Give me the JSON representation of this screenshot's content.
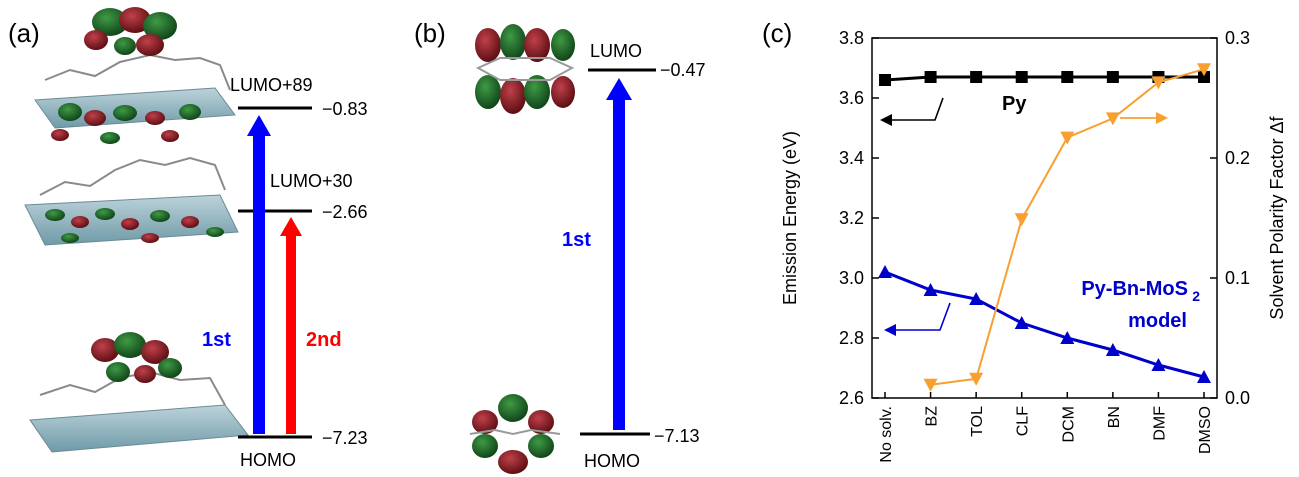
{
  "panel_a": {
    "tag": "(a)",
    "levels": [
      {
        "name": "LUMO+89",
        "energy": "−0.83"
      },
      {
        "name": "LUMO+30",
        "energy": "−2.66"
      },
      {
        "name": "HOMO",
        "energy": "−7.23"
      }
    ],
    "transitions": [
      {
        "label": "1st",
        "color": "#0000ff"
      },
      {
        "label": "2nd",
        "color": "#ff0000"
      }
    ]
  },
  "panel_b": {
    "tag": "(b)",
    "levels": [
      {
        "name": "LUMO",
        "energy": "−0.47"
      },
      {
        "name": "HOMO",
        "energy": "−7.13"
      }
    ],
    "transitions": [
      {
        "label": "1st",
        "color": "#0000ff"
      }
    ]
  },
  "panel_c": {
    "tag": "(c)",
    "py_label": "Py",
    "model_label_line1": "Py-Bn-MoS",
    "model_label_sub": "2",
    "model_label_line2": "model"
  },
  "chart_data": {
    "type": "line",
    "categories": [
      "No solv.",
      "BZ",
      "TOL",
      "CLF",
      "DCM",
      "BN",
      "DMF",
      "DMSO"
    ],
    "ylabel": "Emission Energy (eV)",
    "y2label": "Solvent Polarity Factor Δf",
    "ylim": [
      2.6,
      3.8
    ],
    "y2lim": [
      0.0,
      0.3
    ],
    "yticks": [
      "2.6",
      "2.8",
      "3.0",
      "3.2",
      "3.4",
      "3.6",
      "3.8"
    ],
    "y2ticks": [
      "0.0",
      "0.1",
      "0.2",
      "0.3"
    ],
    "series": [
      {
        "name": "Py",
        "axis": "left",
        "color": "#000000",
        "marker": "square",
        "values": [
          3.66,
          3.67,
          3.67,
          3.67,
          3.67,
          3.67,
          3.67,
          3.67
        ]
      },
      {
        "name": "Py-Bn-MoS2 model",
        "axis": "left",
        "color": "#0000cc",
        "marker": "triangle-up",
        "values": [
          3.02,
          2.96,
          2.93,
          2.85,
          2.8,
          2.76,
          2.71,
          2.67
        ]
      },
      {
        "axis": "right",
        "color": "#f7a030",
        "marker": "triangle-down",
        "values": [
          null,
          0.011,
          0.016,
          0.149,
          0.217,
          0.233,
          0.263,
          0.274
        ]
      }
    ]
  }
}
